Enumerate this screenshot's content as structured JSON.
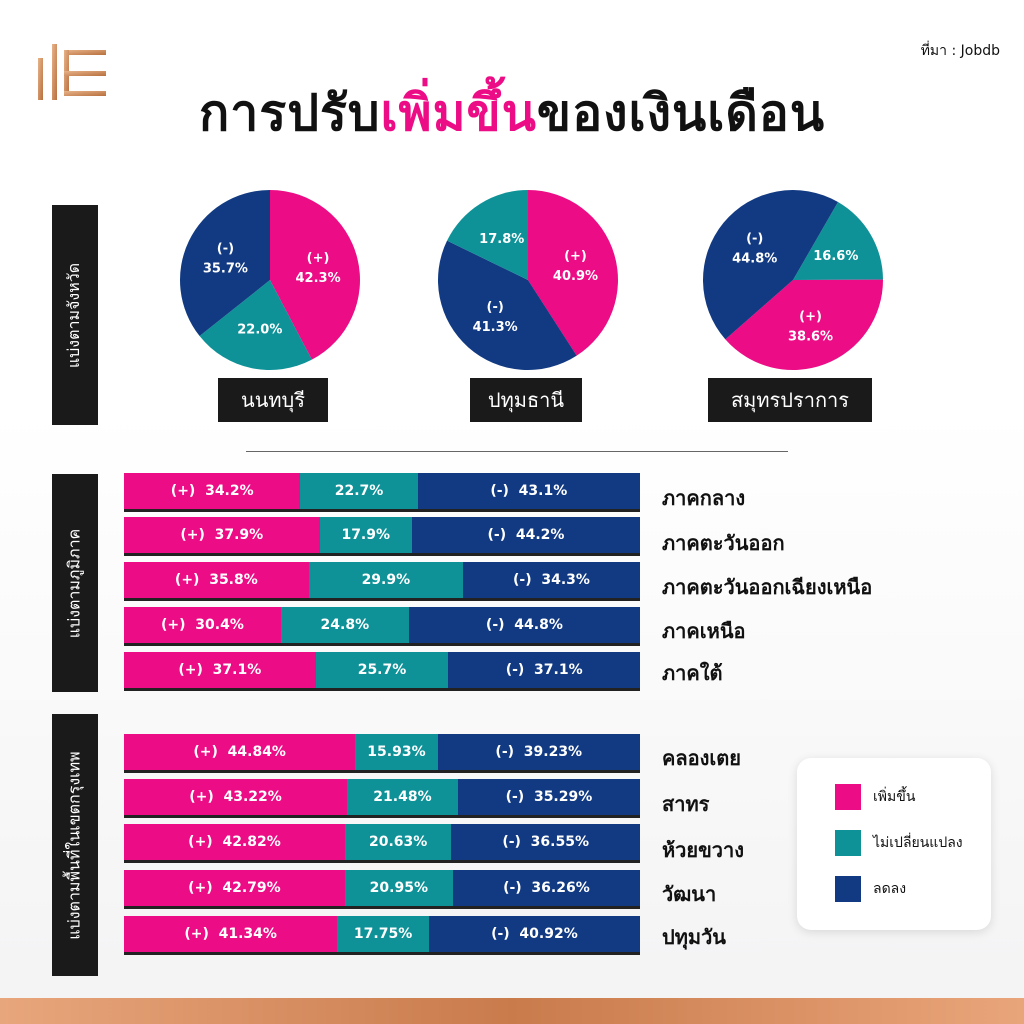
{
  "header": {
    "source": "ที่มา : Jobdb",
    "title_part1": "การปรับ",
    "title_highlight": "เพิ่มขึ้น",
    "title_part2": "ของเงินเดือน"
  },
  "sections": {
    "province": "แบ่งตามจังหวัด",
    "region": "แบ่งตามภูมิภาค",
    "bangkok": "แบ่งตามพื้นที่ในเขตกรุงเทพ"
  },
  "colors": {
    "increase": "#ec0c85",
    "unchanged": "#0e9298",
    "decrease": "#123a82",
    "title_highlight": "#ec0c85"
  },
  "legend": {
    "increase": "เพิ่มขึ้น",
    "unchanged": "ไม่เปลี่ยนแปลง",
    "decrease": "ลดลง"
  },
  "chart_data": [
    {
      "type": "pie",
      "group": "province",
      "charts": [
        {
          "name": "นนทบุรี",
          "slices": [
            {
              "key": "increase",
              "prefix": "(+)",
              "value": 42.3,
              "label": "42.3%"
            },
            {
              "key": "unchanged",
              "prefix": "",
              "value": 22.0,
              "label": "22.0%"
            },
            {
              "key": "decrease",
              "prefix": "(-)",
              "value": 35.7,
              "label": "35.7%"
            }
          ]
        },
        {
          "name": "ปทุมธานี",
          "slices": [
            {
              "key": "increase",
              "prefix": "(+)",
              "value": 40.9,
              "label": "40.9%"
            },
            {
              "key": "decrease",
              "prefix": "(-)",
              "value": 41.3,
              "label": "41.3%"
            },
            {
              "key": "unchanged",
              "prefix": "",
              "value": 17.8,
              "label": "17.8%"
            }
          ]
        },
        {
          "name": "สมุทรปราการ",
          "slices": [
            {
              "key": "unchanged",
              "prefix": "",
              "value": 16.6,
              "label": "16.6%"
            },
            {
              "key": "increase",
              "prefix": "(+)",
              "value": 38.6,
              "label": "38.6%"
            },
            {
              "key": "decrease",
              "prefix": "(-)",
              "value": 44.8,
              "label": "44.8%"
            }
          ]
        }
      ]
    },
    {
      "type": "bar",
      "orientation": "horizontal-stacked",
      "group": "region",
      "categories": [
        "ภาคกลาง",
        "ภาคตะวันออก",
        "ภาคตะวันออกเฉียงเหนือ",
        "ภาคเหนือ",
        "ภาคใต้"
      ],
      "series": [
        {
          "key": "increase",
          "prefix": "(+)",
          "values": [
            34.2,
            37.9,
            35.8,
            30.4,
            37.1
          ],
          "labels": [
            "34.2%",
            "37.9%",
            "35.8%",
            "30.4%",
            "37.1%"
          ]
        },
        {
          "key": "unchanged",
          "prefix": "",
          "values": [
            22.7,
            17.9,
            29.9,
            24.8,
            25.7
          ],
          "labels": [
            "22.7%",
            "17.9%",
            "29.9%",
            "24.8%",
            "25.7%"
          ]
        },
        {
          "key": "decrease",
          "prefix": "(-)",
          "values": [
            43.1,
            44.2,
            34.3,
            44.8,
            37.1
          ],
          "labels": [
            "43.1%",
            "44.2%",
            "34.3%",
            "44.8%",
            "37.1%"
          ]
        }
      ]
    },
    {
      "type": "bar",
      "orientation": "horizontal-stacked",
      "group": "bangkok",
      "categories": [
        "คลองเตย",
        "สาทร",
        "ห้วยขวาง",
        "วัฒนา",
        "ปทุมวัน"
      ],
      "series": [
        {
          "key": "increase",
          "prefix": "(+)",
          "values": [
            44.84,
            43.22,
            42.82,
            42.79,
            41.34
          ],
          "labels": [
            "44.84%",
            "43.22%",
            "42.82%",
            "42.79%",
            "41.34%"
          ]
        },
        {
          "key": "unchanged",
          "prefix": "",
          "values": [
            15.93,
            21.48,
            20.63,
            20.95,
            17.75
          ],
          "labels": [
            "15.93%",
            "21.48%",
            "20.63%",
            "20.95%",
            "17.75%"
          ]
        },
        {
          "key": "decrease",
          "prefix": "(-)",
          "values": [
            39.23,
            35.29,
            36.55,
            36.26,
            40.92
          ],
          "labels": [
            "39.23%",
            "35.29%",
            "36.55%",
            "36.26%",
            "40.92%"
          ]
        }
      ]
    }
  ]
}
